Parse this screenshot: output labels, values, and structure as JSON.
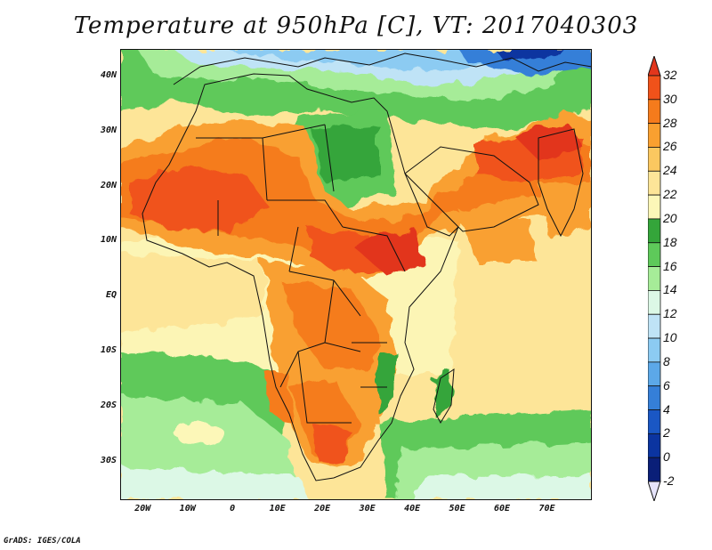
{
  "title": "Temperature at 950hPa [C], VT: 2017040303",
  "footer": "GrADS: IGES/COLA",
  "map": {
    "lon_range": [
      -25,
      80
    ],
    "lat_range": [
      -37,
      45
    ],
    "y_ticks": [
      "40N",
      "30N",
      "20N",
      "10N",
      "EQ",
      "10S",
      "20S",
      "30S"
    ],
    "x_ticks": [
      "20W",
      "10W",
      "0",
      "10E",
      "20E",
      "30E",
      "40E",
      "50E",
      "60E",
      "70E"
    ]
  },
  "colorbar": {
    "labels": [
      "32",
      "30",
      "28",
      "26",
      "24",
      "22",
      "20",
      "18",
      "16",
      "14",
      "12",
      "10",
      "8",
      "6",
      "4",
      "2",
      "0",
      "-2"
    ],
    "colors": [
      "#e2361c",
      "#f0521a",
      "#f57b1c",
      "#f9a030",
      "#fbc860",
      "#fde598",
      "#fcf7b8",
      "#34a53a",
      "#5ec95a",
      "#a6ec98",
      "#dcf8e6",
      "#bfe3f6",
      "#8ccbf2",
      "#5ca8e8",
      "#357fd8",
      "#1a57c4",
      "#0b34a0",
      "#0a1f78",
      "#e6e4fb"
    ]
  }
}
